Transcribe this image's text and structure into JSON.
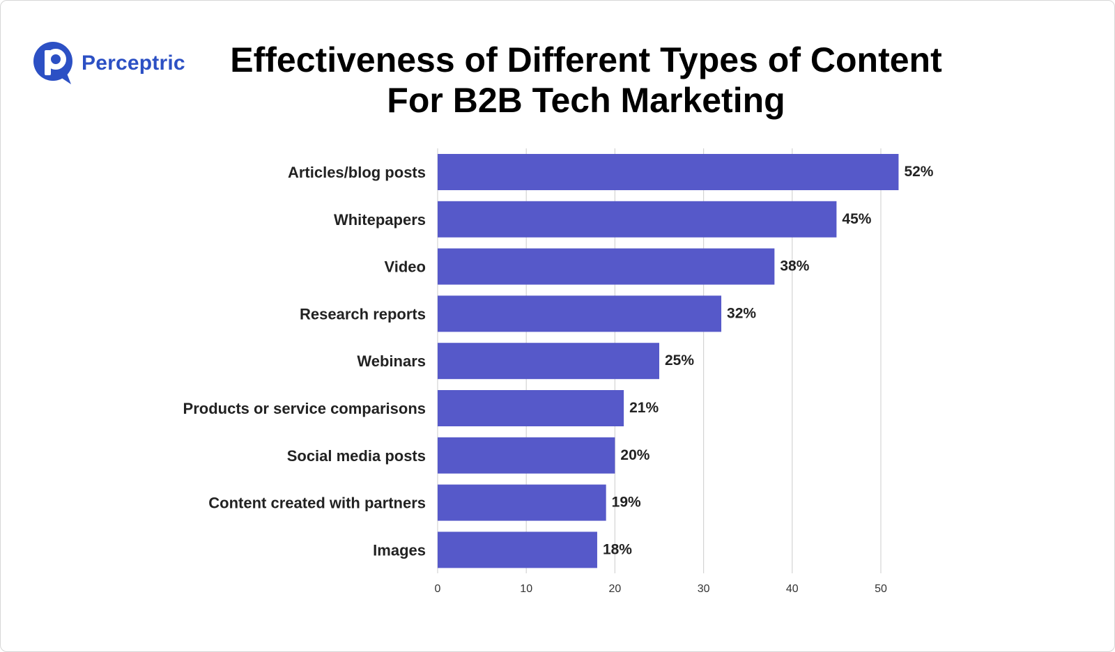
{
  "brand": {
    "name": "Perceptric",
    "logo_icon": "perceptric-p-logo-icon",
    "color": "#2c50c4"
  },
  "chart_data": {
    "type": "bar",
    "orientation": "horizontal",
    "title_lines": [
      "Effectiveness of Different Types of Content",
      "For B2B Tech Marketing"
    ],
    "categories": [
      "Articles/blog posts",
      "Whitepapers",
      "Video",
      "Research reports",
      "Webinars",
      "Products or service comparisons",
      "Social media posts",
      "Content created with partners",
      "Images"
    ],
    "values": [
      52,
      45,
      38,
      32,
      25,
      21,
      20,
      19,
      18
    ],
    "value_labels": [
      "52%",
      "45%",
      "38%",
      "32%",
      "25%",
      "21%",
      "20%",
      "19%",
      "18%"
    ],
    "xticks": [
      "0",
      "10",
      "20",
      "30",
      "40",
      "50"
    ],
    "xlim": [
      0,
      55
    ],
    "grid": true,
    "bar_color": "#5659c9",
    "grid_color": "#d4d4d4"
  }
}
